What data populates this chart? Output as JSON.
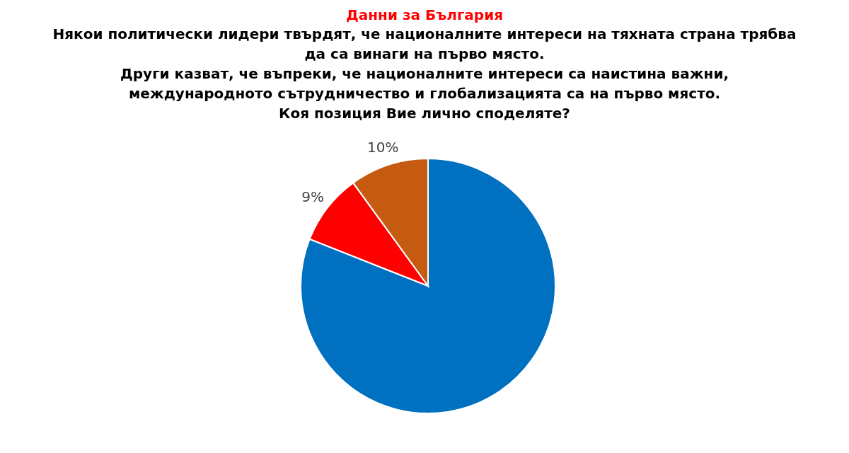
{
  "chart_data": {
    "type": "pie",
    "title": "Данни за България",
    "subtitle": "Някои политически лидери твърдят, че националните интереси на тяхната страна трябва да са винаги на първо място.\nДруги казват, че въпреки, че националните интереси са наистина важни, международното сътрудничество и глобализацията са на първо място.\nКоя позиция Вие лично споделяте?",
    "categories": [
      null,
      null,
      null
    ],
    "values": [
      81,
      9,
      10
    ],
    "colors": [
      "#0070c0",
      "#ff0000",
      "#c55a11"
    ],
    "value_labels": [
      null,
      "9%",
      "10%"
    ]
  }
}
